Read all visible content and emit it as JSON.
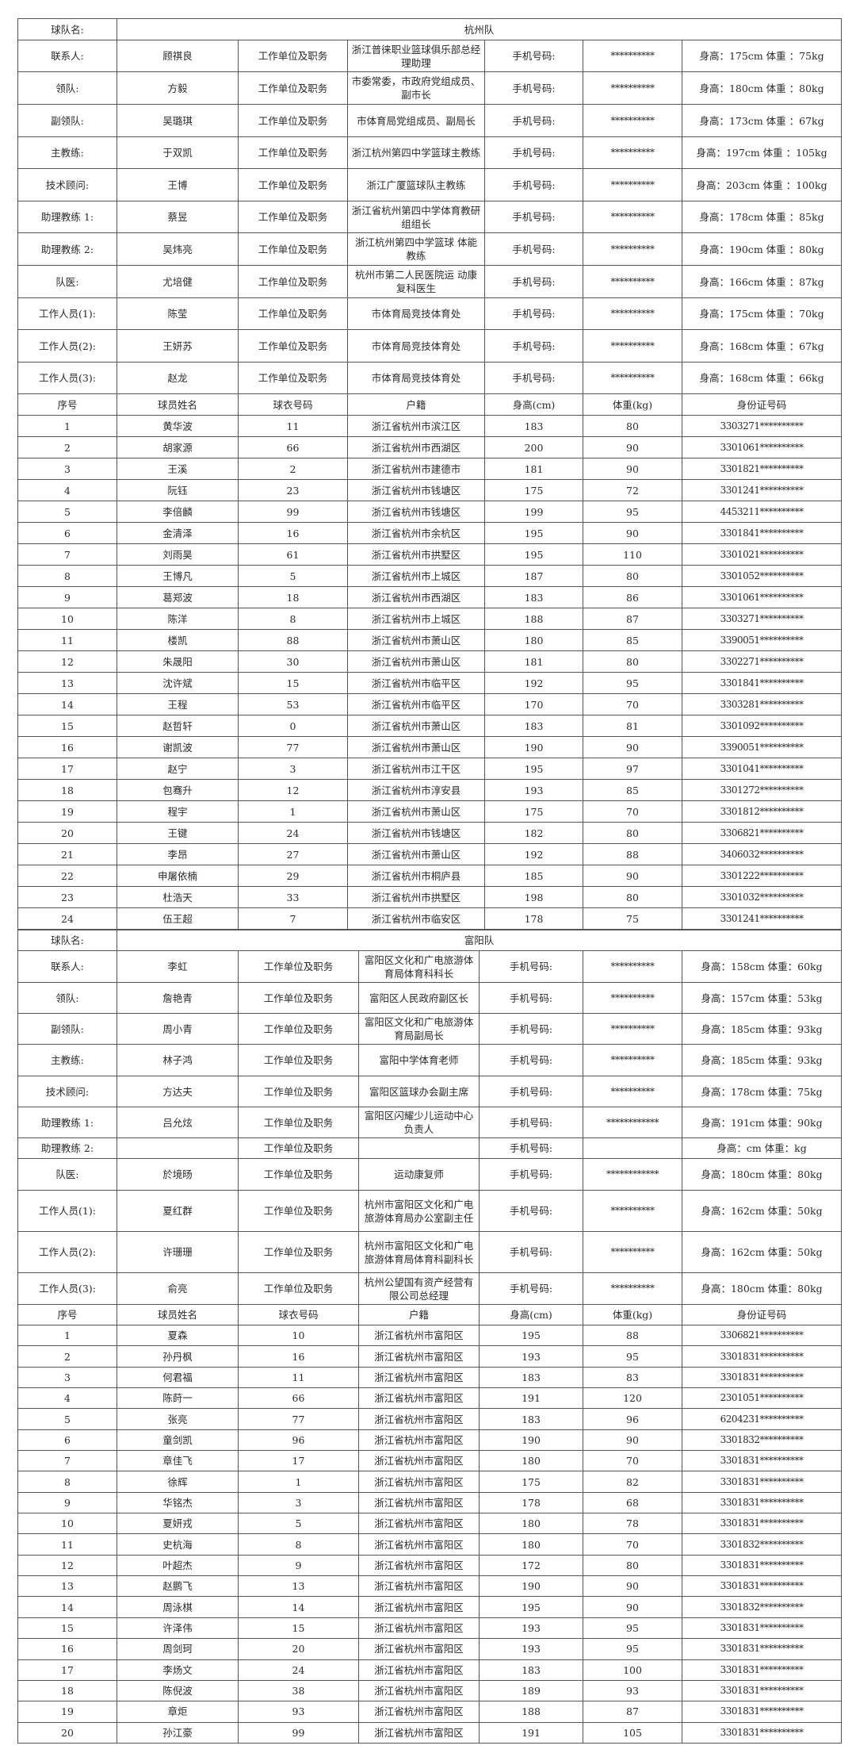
{
  "teams": [
    {
      "name_label": "球队名:",
      "name": "杭州队",
      "staff": [
        {
          "role": "联系人:",
          "name": "顾祺良",
          "unit_label": "工作单位及职务",
          "unit": "浙江普徕职业篮球俱乐部总经理助理",
          "phone_label": "手机号码:",
          "phone": "**********",
          "body": "身高：175cm 体重 ：75kg"
        },
        {
          "role": "领队:",
          "name": "方毅",
          "unit_label": "工作单位及职务",
          "unit": "市委常委，市政府党组成员、副市长",
          "phone_label": "手机号码:",
          "phone": "**********",
          "body": "身高：180cm 体重 ：80kg"
        },
        {
          "role": "副领队:",
          "name": "吴璐琪",
          "unit_label": "工作单位及职务",
          "unit": "市体育局党组成员、副局长",
          "phone_label": "手机号码:",
          "phone": "**********",
          "body": "身高：173cm 体重 ：67kg"
        },
        {
          "role": "主教练:",
          "name": "于双凯",
          "unit_label": "工作单位及职务",
          "unit": "浙江杭州第四中学篮球主教练",
          "phone_label": "手机号码:",
          "phone": "**********",
          "body": "身高：197cm 体重 ：105kg"
        },
        {
          "role": "技术顾问:",
          "name": "王博",
          "unit_label": "工作单位及职务",
          "unit": "浙江广厦篮球队主教练",
          "phone_label": "手机号码:",
          "phone": "**********",
          "body": "身高：203cm 体重 ：100kg"
        },
        {
          "role": "助理教练 1:",
          "name": "蔡昱",
          "unit_label": "工作单位及职务",
          "unit": "浙江省杭州第四中学体育教研组组长",
          "phone_label": "手机号码:",
          "phone": "**********",
          "body": "身高：178cm 体重 ：85kg"
        },
        {
          "role": "助理教练 2:",
          "name": "吴炜亮",
          "unit_label": "工作单位及职务",
          "unit": "浙江杭州第四中学篮球 体能教练",
          "phone_label": "手机号码:",
          "phone": "**********",
          "body": "身高：190cm 体重 ：80kg"
        },
        {
          "role": "队医:",
          "name": "尤培健",
          "unit_label": "工作单位及职务",
          "unit": "杭州市第二人民医院运 动康复科医生",
          "phone_label": "手机号码:",
          "phone": "**********",
          "body": "身高：166cm 体重 ：87kg"
        },
        {
          "role": "工作人员(1):",
          "name": "陈莹",
          "unit_label": "工作单位及职务",
          "unit": "市体育局竞技体育处",
          "phone_label": "手机号码:",
          "phone": "**********",
          "body": "身高：175cm 体重 ：70kg"
        },
        {
          "role": "工作人员(2):",
          "name": "王妍苏",
          "unit_label": "工作单位及职务",
          "unit": "市体育局竞技体育处",
          "phone_label": "手机号码:",
          "phone": "**********",
          "body": "身高：168cm 体重 ：67kg"
        },
        {
          "role": "工作人员(3):",
          "name": "赵龙",
          "unit_label": "工作单位及职务",
          "unit": "市体育局竞技体育处",
          "phone_label": "手机号码:",
          "phone": "**********",
          "body": "身高：168cm 体重 ：66kg"
        }
      ],
      "player_headers": [
        "序号",
        "球员姓名",
        "球衣号码",
        "户籍",
        "身高(cm)",
        "体重(kg)",
        "身份证号码"
      ],
      "players": [
        [
          "1",
          "黄华波",
          "11",
          "浙江省杭州市滨江区",
          "183",
          "80",
          "3303271**********"
        ],
        [
          "2",
          "胡家源",
          "66",
          "浙江省杭州市西湖区",
          "200",
          "90",
          "3301061**********"
        ],
        [
          "3",
          "王溪",
          "2",
          "浙江省杭州市建德市",
          "181",
          "90",
          "3301821**********"
        ],
        [
          "4",
          "阮钰",
          "23",
          "浙江省杭州市钱塘区",
          "175",
          "72",
          "3301241**********"
        ],
        [
          "5",
          "李倍麟",
          "99",
          "浙江省杭州市钱塘区",
          "199",
          "95",
          "4453211**********"
        ],
        [
          "6",
          "金清泽",
          "16",
          "浙江省杭州市余杭区",
          "195",
          "90",
          "3301841**********"
        ],
        [
          "7",
          "刘雨昊",
          "61",
          "浙江省杭州市拱墅区",
          "195",
          "110",
          "3301021**********"
        ],
        [
          "8",
          "王博凡",
          "5",
          "浙江省杭州市上城区",
          "187",
          "80",
          "3301052**********"
        ],
        [
          "9",
          "葛郑波",
          "18",
          "浙江省杭州市西湖区",
          "183",
          "86",
          "3301061**********"
        ],
        [
          "10",
          "陈洋",
          "8",
          "浙江省杭州市上城区",
          "188",
          "87",
          "3303271**********"
        ],
        [
          "11",
          "楼凯",
          "88",
          "浙江省杭州市萧山区",
          "180",
          "85",
          "3390051**********"
        ],
        [
          "12",
          "朱晟阳",
          "30",
          "浙江省杭州市萧山区",
          "181",
          "80",
          "3302271**********"
        ],
        [
          "13",
          "沈许斌",
          "15",
          "浙江省杭州市临平区",
          "192",
          "95",
          "3301841**********"
        ],
        [
          "14",
          "王程",
          "53",
          "浙江省杭州市临平区",
          "170",
          "70",
          "3303281**********"
        ],
        [
          "15",
          "赵哲轩",
          "0",
          "浙江省杭州市萧山区",
          "183",
          "81",
          "3301092**********"
        ],
        [
          "16",
          "谢凯波",
          "77",
          "浙江省杭州市萧山区",
          "190",
          "90",
          "3390051**********"
        ],
        [
          "17",
          "赵宁",
          "3",
          "浙江省杭州市江干区",
          "195",
          "97",
          "3301041**********"
        ],
        [
          "18",
          "包骞升",
          "12",
          "浙江省杭州市淳安县",
          "193",
          "85",
          "3301272**********"
        ],
        [
          "19",
          "程宇",
          "1",
          "浙江省杭州市萧山区",
          "175",
          "70",
          "3301812**********"
        ],
        [
          "20",
          "王键",
          "24",
          "浙江省杭州市钱塘区",
          "182",
          "80",
          "3306821**********"
        ],
        [
          "21",
          "李昂",
          "27",
          "浙江省杭州市萧山区",
          "192",
          "88",
          "3406032**********"
        ],
        [
          "22",
          "申屠依楠",
          "29",
          "浙江省杭州市桐庐县",
          "185",
          "90",
          "3301222**********"
        ],
        [
          "23",
          "杜浩天",
          "33",
          "浙江省杭州市拱墅区",
          "198",
          "80",
          "3301032**********"
        ],
        [
          "24",
          "伍王超",
          "7",
          "浙江省杭州市临安区",
          "178",
          "75",
          "3301241**********"
        ]
      ]
    },
    {
      "name_label": "球队名:",
      "name": "富阳队",
      "staff": [
        {
          "role": "联系人:",
          "name": "李虹",
          "unit_label": "工作单位及职务",
          "unit": "富阳区文化和广电旅游体育局体育科科长",
          "phone_label": "手机号码:",
          "phone": "**********",
          "body": "身高：158cm 体重：60kg"
        },
        {
          "role": "领队:",
          "name": "詹艳青",
          "unit_label": "工作单位及职务",
          "unit": "富阳区人民政府副区长",
          "phone_label": "手机号码:",
          "phone": "**********",
          "body": "身高：157cm 体重：53kg"
        },
        {
          "role": "副领队:",
          "name": "周小青",
          "unit_label": "工作单位及职务",
          "unit": "富阳区文化和广电旅游体育局副局长",
          "phone_label": "手机号码:",
          "phone": "**********",
          "body": "身高：185cm 体重：93kg"
        },
        {
          "role": "主教练:",
          "name": "林子鸿",
          "unit_label": "工作单位及职务",
          "unit": "富阳中学体育老师",
          "phone_label": "手机号码:",
          "phone": "**********",
          "body": "身高：185cm 体重：93kg"
        },
        {
          "role": "技术顾问:",
          "name": "方达夫",
          "unit_label": "工作单位及职务",
          "unit": "富阳区篮球办会副主席",
          "phone_label": "手机号码:",
          "phone": "**********",
          "body": "身高：178cm 体重：75kg"
        },
        {
          "role": "助理教练 1:",
          "name": "吕允炫",
          "unit_label": "工作单位及职务",
          "unit": "富阳区闪耀少儿运动中心负责人",
          "phone_label": "手机号码:",
          "phone": "************",
          "body": "身高：191cm 体重：90kg"
        },
        {
          "role": "助理教练 2:",
          "name": "",
          "unit_label": "工作单位及职务",
          "unit": "",
          "phone_label": "手机号码:",
          "phone": "",
          "body": "身高：cm 体重：kg"
        },
        {
          "role": "队医:",
          "name": "於境旸",
          "unit_label": "工作单位及职务",
          "unit": "运动康复师",
          "phone_label": "手机号码:",
          "phone": "************",
          "body": "身高：180cm 体重：80kg"
        },
        {
          "role": "工作人员(1):",
          "name": "夏红群",
          "unit_label": "工作单位及职务",
          "unit": "杭州市富阳区文化和广电旅游体育局办公室副主任",
          "phone_label": "手机号码:",
          "phone": "**********",
          "body": "身高：162cm 体重：50kg"
        },
        {
          "role": "工作人员(2):",
          "name": "许珊珊",
          "unit_label": "工作单位及职务",
          "unit": "杭州市富阳区文化和广电旅游体育局体育科副科长",
          "phone_label": "手机号码:",
          "phone": "**********",
          "body": "身高：162cm 体重：50kg"
        },
        {
          "role": "工作人员(3):",
          "name": "俞亮",
          "unit_label": "工作单位及职务",
          "unit": "杭州公望国有资产经营有限公司总经理",
          "phone_label": "手机号码:",
          "phone": "**********",
          "body": "身高：180cm 体重：80kg"
        }
      ],
      "player_headers": [
        "序号",
        "球员姓名",
        "球衣号码",
        "户籍",
        "身高(cm)",
        "体重(kg)",
        "身份证号码"
      ],
      "players": [
        [
          "1",
          "夏森",
          "10",
          "浙江省杭州市富阳区",
          "195",
          "88",
          "3306821**********"
        ],
        [
          "2",
          "孙丹枫",
          "16",
          "浙江省杭州市富阳区",
          "193",
          "95",
          "3301831**********"
        ],
        [
          "3",
          "何君福",
          "11",
          "浙江省杭州市富阳区",
          "183",
          "83",
          "3301831**********"
        ],
        [
          "4",
          "陈莳一",
          "66",
          "浙江省杭州市富阳区",
          "191",
          "120",
          "2301051**********"
        ],
        [
          "5",
          "张亮",
          "77",
          "浙江省杭州市富阳区",
          "183",
          "96",
          "6204231**********"
        ],
        [
          "6",
          "童剑凯",
          "96",
          "浙江省杭州市富阳区",
          "190",
          "90",
          "3301832**********"
        ],
        [
          "7",
          "章佳飞",
          "17",
          "浙江省杭州市富阳区",
          "180",
          "70",
          "3301831**********"
        ],
        [
          "8",
          "徐辉",
          "1",
          "浙江省杭州市富阳区",
          "175",
          "82",
          "3301831**********"
        ],
        [
          "9",
          "华铭杰",
          "3",
          "浙江省杭州市富阳区",
          "178",
          "68",
          "3301831**********"
        ],
        [
          "10",
          "夏妍戎",
          "5",
          "浙江省杭州市富阳区",
          "180",
          "78",
          "3301831**********"
        ],
        [
          "11",
          "史杭海",
          "8",
          "浙江省杭州市富阳区",
          "180",
          "70",
          "3301832**********"
        ],
        [
          "12",
          "叶超杰",
          "9",
          "浙江省杭州市富阳区",
          "172",
          "80",
          "3301831**********"
        ],
        [
          "13",
          "赵鹏飞",
          "13",
          "浙江省杭州市富阳区",
          "190",
          "90",
          "3301831**********"
        ],
        [
          "14",
          "周泳棋",
          "14",
          "浙江省杭州市富阳区",
          "195",
          "90",
          "3301832**********"
        ],
        [
          "15",
          "许泽伟",
          "15",
          "浙江省杭州市富阳区",
          "193",
          "95",
          "3301831**********"
        ],
        [
          "16",
          "周剑珂",
          "20",
          "浙江省杭州市富阳区",
          "193",
          "95",
          "3301831**********"
        ],
        [
          "17",
          "李炀文",
          "24",
          "浙江省杭州市富阳区",
          "183",
          "100",
          "3301831**********"
        ],
        [
          "18",
          "陈倪波",
          "38",
          "浙江省杭州市富阳区",
          "189",
          "93",
          "3301831**********"
        ],
        [
          "19",
          "章炬",
          "93",
          "浙江省杭州市富阳区",
          "188",
          "87",
          "3301831**********"
        ],
        [
          "20",
          "孙江豪",
          "99",
          "浙江省杭州市富阳区",
          "191",
          "105",
          "3301831**********"
        ]
      ]
    }
  ]
}
